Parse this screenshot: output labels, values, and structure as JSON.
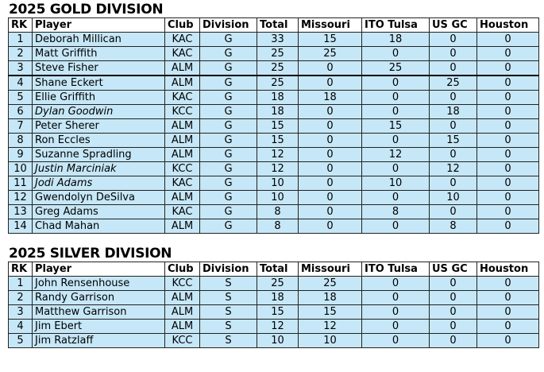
{
  "sections": [
    {
      "title": "2025 GOLD DIVISION",
      "table": {
        "columns": [
          "RK",
          "Player",
          "Club",
          "Division",
          "Total",
          "Missouri",
          "ITO Tulsa",
          "US GC",
          "Houston"
        ],
        "italic_rows": [
          5,
          9,
          10
        ],
        "rows": [
          [
            1,
            "Deborah Millican",
            "KAC",
            "G",
            33,
            15,
            18,
            0,
            0
          ],
          [
            2,
            "Matt Griffith",
            "KAC",
            "G",
            25,
            25,
            0,
            0,
            0
          ],
          [
            3,
            "Steve Fisher",
            "ALM",
            "G",
            25,
            0,
            25,
            0,
            0
          ],
          [
            4,
            "Shane Eckert",
            "ALM",
            "G",
            25,
            0,
            0,
            25,
            0
          ],
          [
            5,
            "Ellie Griffith",
            "KAC",
            "G",
            18,
            18,
            0,
            0,
            0
          ],
          [
            6,
            "Dylan Goodwin",
            "KCC",
            "G",
            18,
            0,
            0,
            18,
            0
          ],
          [
            7,
            "Peter Sherer",
            "ALM",
            "G",
            15,
            0,
            15,
            0,
            0
          ],
          [
            8,
            "Ron Eccles",
            "ALM",
            "G",
            15,
            0,
            0,
            15,
            0
          ],
          [
            9,
            "Suzanne Spradling",
            "ALM",
            "G",
            12,
            0,
            12,
            0,
            0
          ],
          [
            10,
            "Justin Marciniak",
            "KCC",
            "G",
            12,
            0,
            0,
            12,
            0
          ],
          [
            11,
            "Jodi Adams",
            "KAC",
            "G",
            10,
            0,
            10,
            0,
            0
          ],
          [
            12,
            "Gwendolyn DeSilva",
            "ALM",
            "G",
            10,
            0,
            0,
            10,
            0
          ],
          [
            13,
            "Greg Adams",
            "KAC",
            "G",
            8,
            0,
            8,
            0,
            0
          ],
          [
            14,
            "Chad Mahan",
            "ALM",
            "G",
            8,
            0,
            0,
            8,
            0
          ]
        ]
      }
    },
    {
      "title": "2025 SILVER DIVISION",
      "table": {
        "columns": [
          "RK",
          "Player",
          "Club",
          "Division",
          "Total",
          "Missouri",
          "ITO Tulsa",
          "US GC",
          "Houston"
        ],
        "italic_rows": [],
        "rows": [
          [
            1,
            "John Rensenhouse",
            "KCC",
            "S",
            25,
            25,
            0,
            0,
            0
          ],
          [
            2,
            "Randy Garrison",
            "ALM",
            "S",
            18,
            18,
            0,
            0,
            0
          ],
          [
            3,
            "Matthew Garrison",
            "ALM",
            "S",
            15,
            15,
            0,
            0,
            0
          ],
          [
            4,
            "Jim Ebert",
            "ALM",
            "S",
            12,
            12,
            0,
            0,
            0
          ],
          [
            5,
            "Jim Ratzlaff",
            "KCC",
            "S",
            10,
            10,
            0,
            0,
            0
          ]
        ]
      }
    }
  ]
}
